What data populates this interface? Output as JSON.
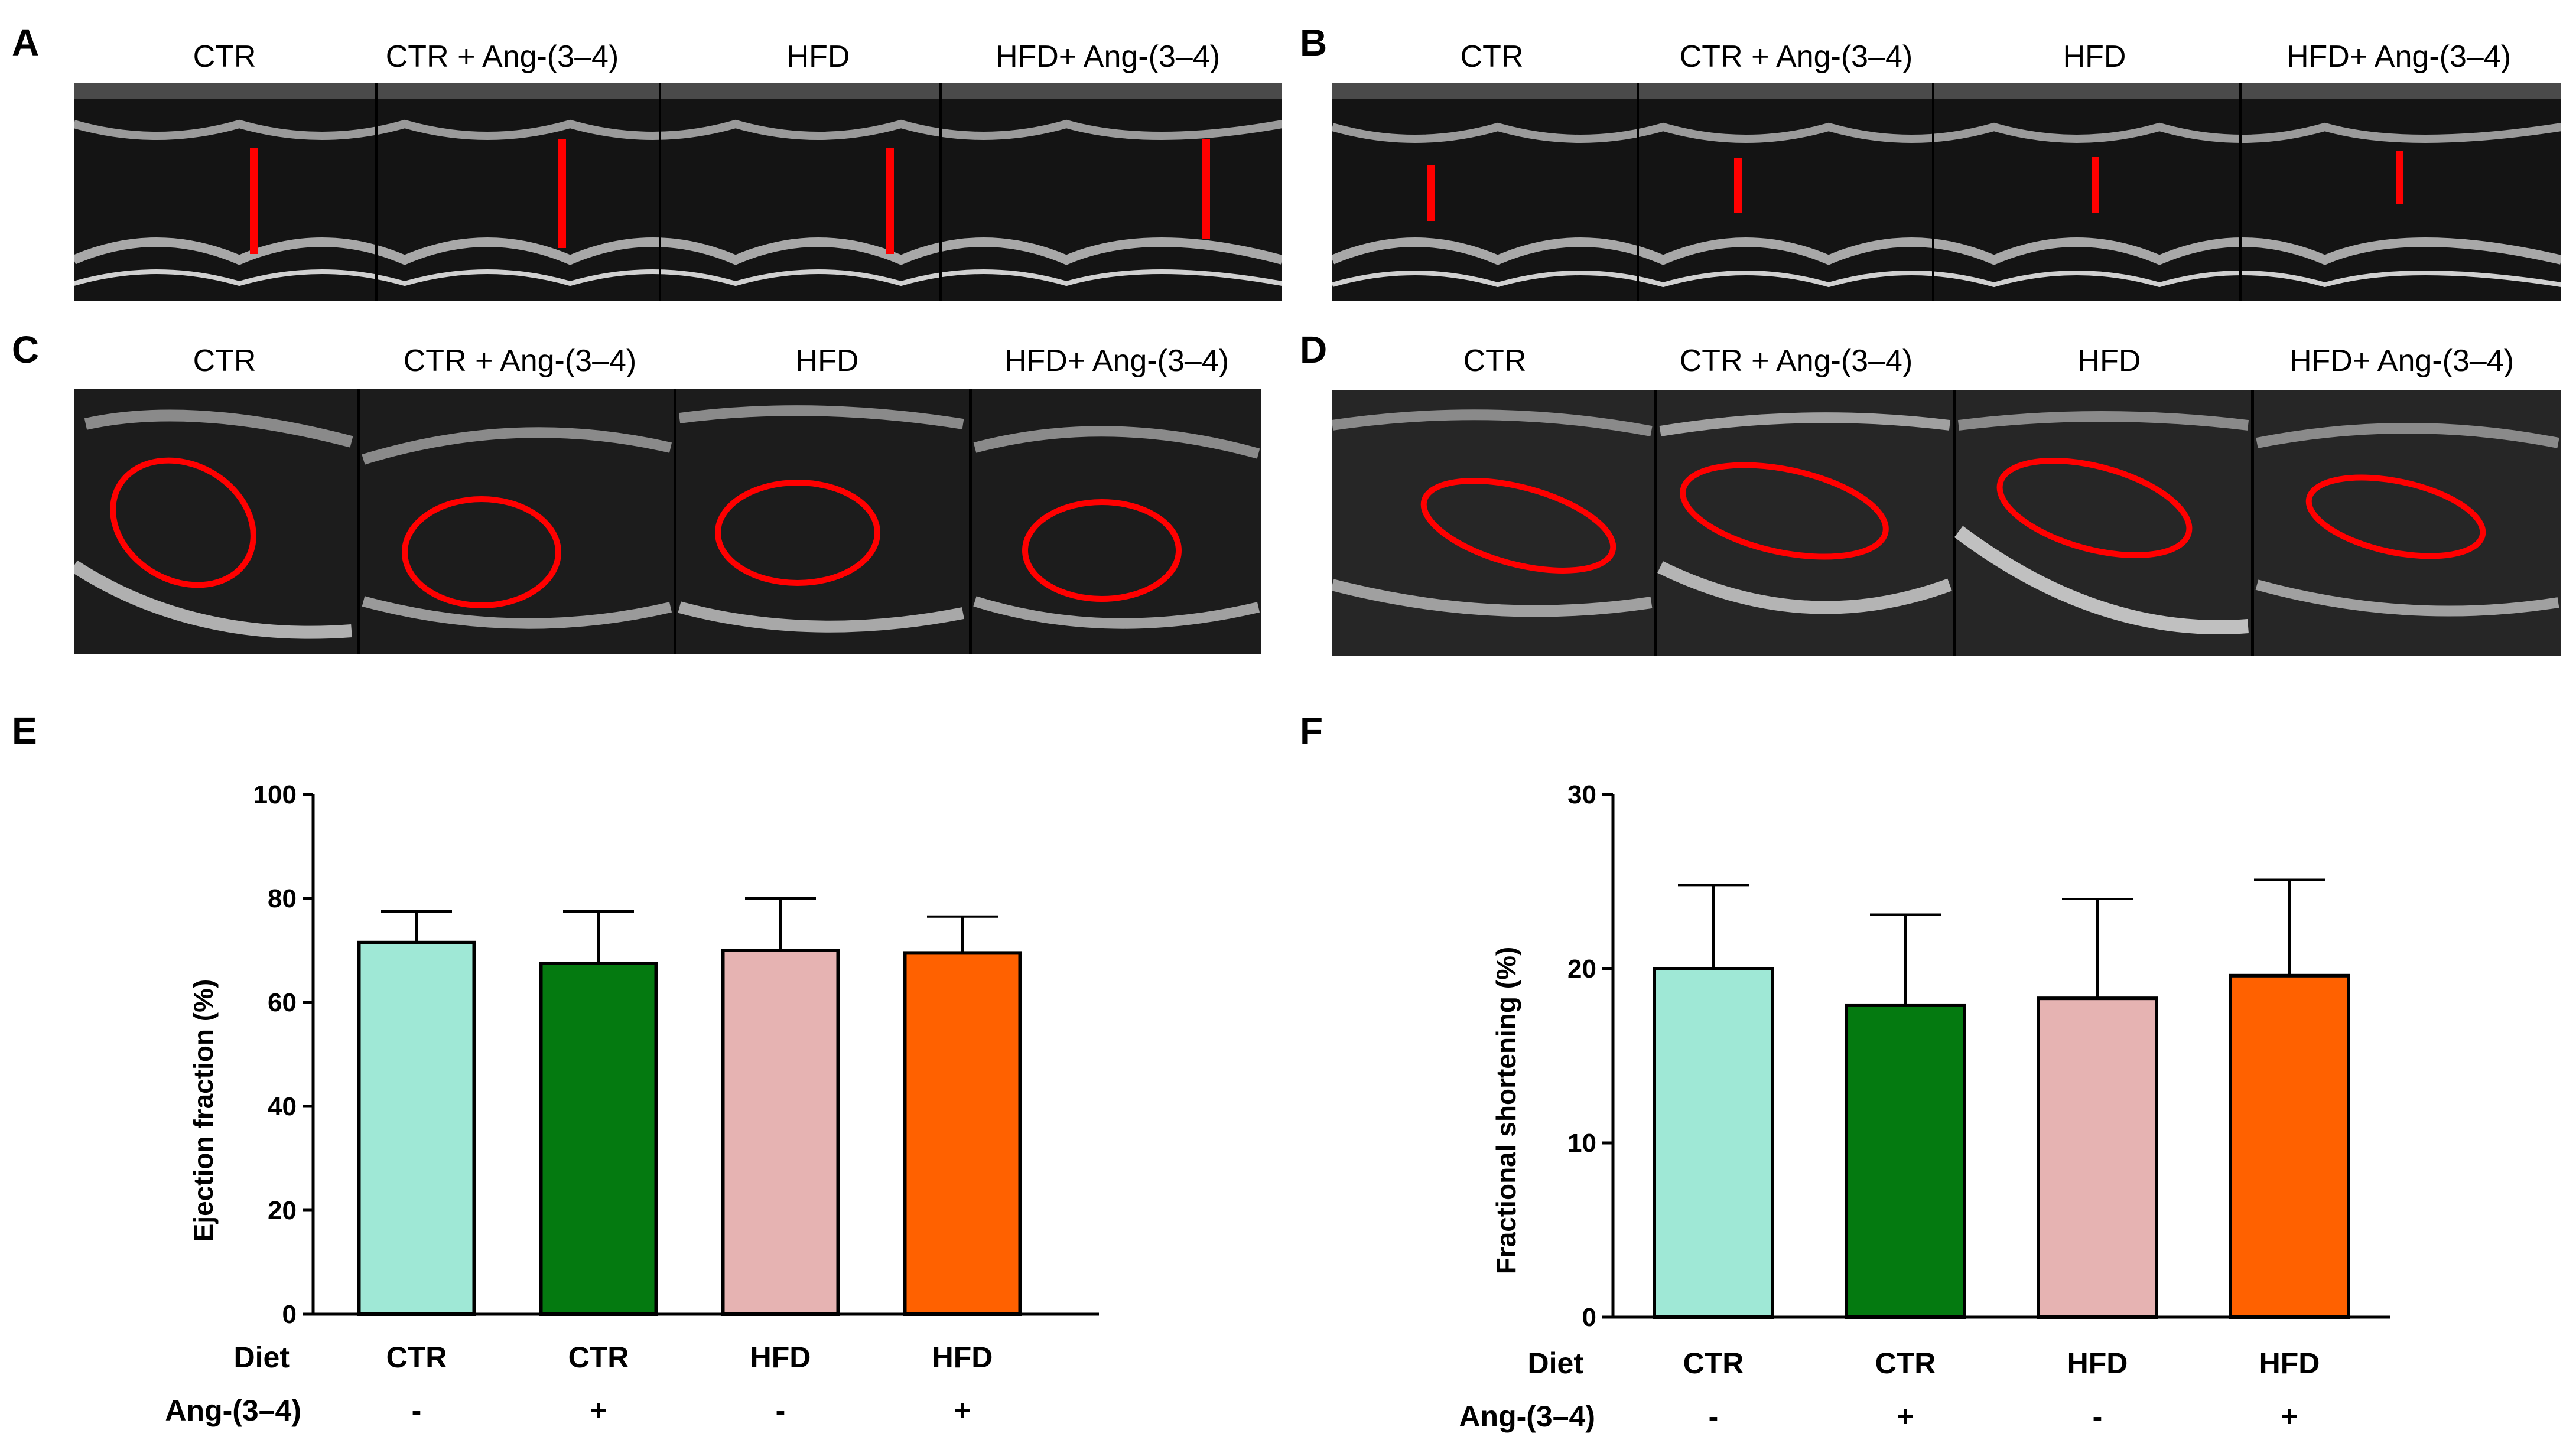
{
  "panels": {
    "A": {
      "label": "A",
      "titles": [
        "CTR",
        "CTR + Ang-(3–4)",
        "HFD",
        "HFD+ Ang-(3–4)"
      ]
    },
    "B": {
      "label": "B",
      "titles": [
        "CTR",
        "CTR + Ang-(3–4)",
        "HFD",
        "HFD+ Ang-(3–4)"
      ]
    },
    "C": {
      "label": "C",
      "titles": [
        "CTR",
        "CTR + Ang-(3–4)",
        "HFD",
        "HFD+ Ang-(3–4)"
      ]
    },
    "D": {
      "label": "D",
      "titles": [
        "CTR",
        "CTR + Ang-(3–4)",
        "HFD",
        "HFD+ Ang-(3–4)"
      ]
    },
    "E": {
      "label": "E"
    },
    "F": {
      "label": "F"
    }
  },
  "colors": {
    "ctr": "#9fe8d6",
    "ctr_ang": "#047a10",
    "hfd": "#e6b3b2",
    "hfd_ang": "#ff6100",
    "marker": "#ff0000"
  },
  "chart_data": [
    {
      "type": "bar",
      "panel": "E",
      "ylabel": "Ejection fraction (%)",
      "ylim": [
        0,
        100
      ],
      "yticks": [
        0,
        20,
        40,
        60,
        80,
        100
      ],
      "row_labels": {
        "diet": "Diet",
        "treatment": "Ang-(3–4)"
      },
      "categories": [
        {
          "diet": "CTR",
          "treatment": "-"
        },
        {
          "diet": "CTR",
          "treatment": "+"
        },
        {
          "diet": "HFD",
          "treatment": "-"
        },
        {
          "diet": "HFD",
          "treatment": "+"
        }
      ],
      "values": [
        71.5,
        67.5,
        70,
        69.5
      ],
      "errors": [
        6,
        10,
        10,
        7
      ],
      "colors": [
        "#9fe8d6",
        "#047a10",
        "#e6b3b2",
        "#ff6100"
      ]
    },
    {
      "type": "bar",
      "panel": "F",
      "ylabel": "Fractional shortening (%)",
      "ylim": [
        0,
        30
      ],
      "yticks": [
        0,
        10,
        20,
        30
      ],
      "row_labels": {
        "diet": "Diet",
        "treatment": "Ang-(3–4)"
      },
      "categories": [
        {
          "diet": "CTR",
          "treatment": "-"
        },
        {
          "diet": "CTR",
          "treatment": "+"
        },
        {
          "diet": "HFD",
          "treatment": "-"
        },
        {
          "diet": "HFD",
          "treatment": "+"
        }
      ],
      "values": [
        20,
        17.9,
        18.3,
        19.6
      ],
      "errors": [
        4.8,
        5.2,
        5.7,
        5.5
      ],
      "colors": [
        "#9fe8d6",
        "#047a10",
        "#e6b3b2",
        "#ff6100"
      ]
    }
  ]
}
